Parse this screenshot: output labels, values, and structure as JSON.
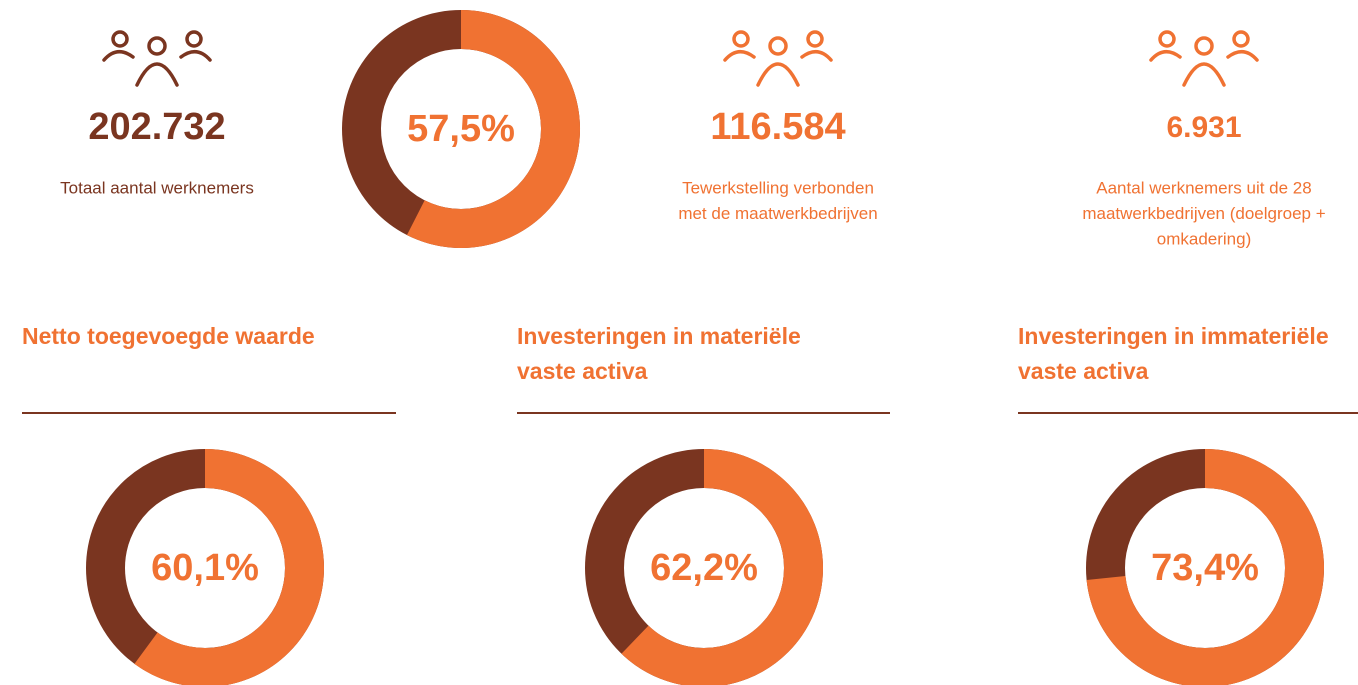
{
  "stats": [
    {
      "value": "202.732",
      "label": [
        "Totaal aantal werknemers"
      ]
    },
    {
      "value": "116.584",
      "label": [
        "Tewerkstelling verbonden",
        "met de maatwerkbedrijven"
      ]
    },
    {
      "value": "6.931",
      "label": [
        "Aantal werknemers uit de 28",
        "maatwerkbedrijven (doelgroep +",
        "omkadering)"
      ]
    }
  ],
  "chart_data": [
    {
      "type": "pie",
      "values": [
        57.5
      ],
      "value_labels": [
        "57,5%"
      ],
      "colors": [
        "#f07232",
        "#7a3520"
      ]
    },
    {
      "type": "pie",
      "title": [
        "Netto toegevoegde waarde"
      ],
      "values": [
        60.1
      ],
      "value_labels": [
        "60,1%"
      ],
      "colors": [
        "#f07232",
        "#7a3520"
      ]
    },
    {
      "type": "pie",
      "title": [
        "Investeringen in materiële",
        "vaste activa"
      ],
      "values": [
        62.2
      ],
      "value_labels": [
        "62,2%"
      ],
      "colors": [
        "#f07232",
        "#7a3520"
      ]
    },
    {
      "type": "pie",
      "title": [
        "Investeringen in immateriële",
        "vaste activa"
      ],
      "values": [
        73.4
      ],
      "value_labels": [
        "73,4%"
      ],
      "colors": [
        "#f07232",
        "#7a3520"
      ]
    }
  ]
}
